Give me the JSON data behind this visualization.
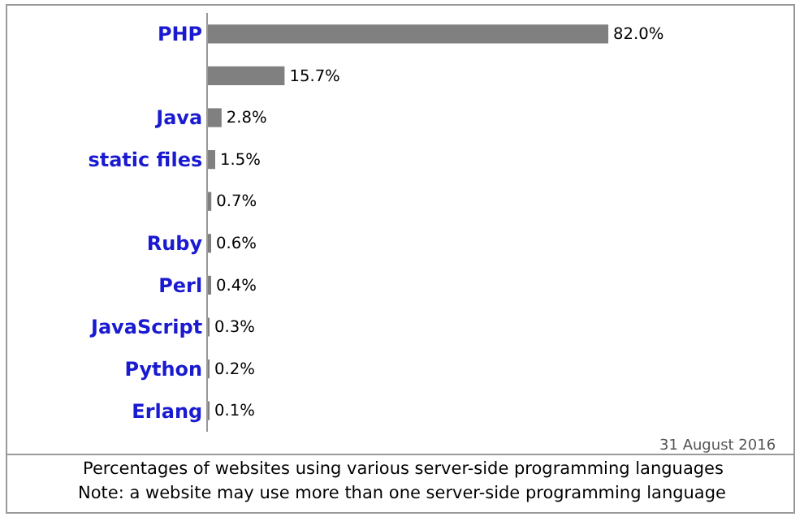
{
  "chart_data": {
    "type": "bar",
    "orientation": "horizontal",
    "categories": [
      "PHP",
      null,
      "Java",
      "static files",
      null,
      "Ruby",
      "Perl",
      "JavaScript",
      "Python",
      "Erlang"
    ],
    "values": [
      82.0,
      15.7,
      2.8,
      1.5,
      0.7,
      0.6,
      0.4,
      0.3,
      0.2,
      0.1
    ],
    "value_labels": [
      "82.0%",
      "15.7%",
      "2.8%",
      "1.5%",
      "0.7%",
      "0.6%",
      "0.4%",
      "0.3%",
      "0.2%",
      "0.1%"
    ],
    "color": "#808080",
    "tick_labels": "y",
    "annotations": [
      "31 August 2016",
      "Percentages of websites using various server-side programming languages",
      "Note: a website may use more than one server-side programming language"
    ]
  }
}
